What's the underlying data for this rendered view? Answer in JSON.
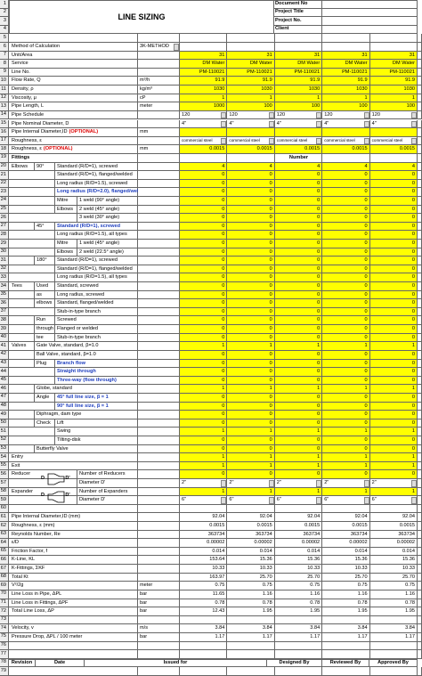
{
  "header": {
    "title": "LINE SIZING",
    "fields": [
      "Document No",
      "Project Title",
      "Project No.",
      "Client"
    ]
  },
  "rows": [
    {
      "n": "1"
    },
    {
      "n": "2"
    },
    {
      "n": "3"
    },
    {
      "n": "4"
    },
    {
      "n": "5"
    },
    {
      "n": "6",
      "c": [
        "Method of Calculation"
      ],
      "u": "3K-METHOD",
      "uk": "select"
    },
    {
      "n": "7",
      "c": [
        "Unit/Area"
      ],
      "v": [
        "31",
        "31",
        "31",
        "31",
        "31"
      ]
    },
    {
      "n": "8",
      "c": [
        "Service"
      ],
      "v": [
        "DM Water",
        "DM Water",
        "DM Water",
        "DM Water",
        "DM Water"
      ]
    },
    {
      "n": "9",
      "c": [
        "Line No."
      ],
      "v": [
        "PM-110021",
        "PM-110021",
        "PM-110021",
        "PM-110021",
        "PM-110021"
      ]
    },
    {
      "n": "10",
      "c": [
        "Flow Rate, Q"
      ],
      "u": "m³/h",
      "v": [
        "91.9",
        "91.9",
        "91.9",
        "91.9",
        "91.9"
      ]
    },
    {
      "n": "11",
      "c": [
        "Density, ρ"
      ],
      "u": "kg/m³",
      "v": [
        "1030",
        "1030",
        "1030",
        "1030",
        "1030"
      ]
    },
    {
      "n": "12",
      "c": [
        "Viscosity, μ"
      ],
      "u": "cP",
      "v": [
        "1",
        "1",
        "1",
        "1",
        "1"
      ]
    },
    {
      "n": "13",
      "c": [
        "Pipe Length, L"
      ],
      "u": "meter",
      "v": [
        "1000",
        "100",
        "100",
        "100",
        "100"
      ]
    },
    {
      "n": "14",
      "c": [
        "Pipe Schedule"
      ],
      "v": [
        "120",
        "120",
        "120",
        "120",
        "120"
      ],
      "kind": "select"
    },
    {
      "n": "15",
      "c": [
        "Pipe Nominal Diameter, D"
      ],
      "v": [
        "4\"",
        "4\"",
        "4\"",
        "4\"",
        "4\""
      ],
      "kind": "select"
    },
    {
      "n": "16",
      "c": [
        "Pipe Internal Diameter,ID"
      ],
      "note": "(OPTIONAL)",
      "u": "mm"
    },
    {
      "n": "17",
      "c": [
        "Roughness, ε"
      ],
      "v": [
        "commercial steel",
        "commercial steel",
        "commercial steel",
        "commercial steel",
        "commercial steel"
      ],
      "kind": "select"
    },
    {
      "n": "18",
      "c": [
        "Roughness, ε"
      ],
      "note": "(OPTIONAL)",
      "u": "mm",
      "v": [
        "0.0015",
        "0.0015",
        "0.0015",
        "0.0015",
        "0.0015"
      ]
    },
    {
      "n": "19",
      "c": [
        "Fittings"
      ],
      "h": "Number"
    },
    {
      "n": "20",
      "c": [
        "Elbows",
        "90°",
        "Standard (R/D=1), screwed"
      ],
      "v": [
        "4",
        "4",
        "4",
        "4",
        "4"
      ]
    },
    {
      "n": "21",
      "c": [
        null,
        null,
        "Standard (R/D=1), flanged/welded"
      ],
      "v": [
        "0",
        "0",
        "0",
        "0",
        "0"
      ]
    },
    {
      "n": "22",
      "c": [
        null,
        null,
        "Long radius (R/D=1.5), screwed"
      ],
      "v": [
        "0",
        "0",
        "0",
        "0",
        "0"
      ]
    },
    {
      "n": "23",
      "c": [
        null,
        null,
        "Long radius (R/D=2.0), flanged/welded"
      ],
      "s": "blue",
      "v": [
        "0",
        "0",
        "0",
        "0",
        "0"
      ]
    },
    {
      "n": "24",
      "c": [
        null,
        null,
        "Mitre",
        "1 weld (90° angle)"
      ],
      "v": [
        "0",
        "0",
        "0",
        "0",
        "0"
      ]
    },
    {
      "n": "25",
      "c": [
        null,
        null,
        "Elbows",
        "2 weld (45° angle)"
      ],
      "v": [
        "0",
        "0",
        "0",
        "0",
        "0"
      ]
    },
    {
      "n": "26",
      "c": [
        null,
        null,
        null,
        "3 weld (30° angle)"
      ],
      "v": [
        "0",
        "0",
        "0",
        "0",
        "0"
      ]
    },
    {
      "n": "27",
      "c": [
        null,
        "45°",
        "Standard (R/D=1), screwed"
      ],
      "s": "blue",
      "v": [
        "0",
        "0",
        "0",
        "0",
        "0"
      ]
    },
    {
      "n": "28",
      "c": [
        null,
        null,
        "Long radius (R/D=1.5), all types"
      ],
      "v": [
        "0",
        "0",
        "0",
        "0",
        "0"
      ]
    },
    {
      "n": "29",
      "c": [
        null,
        null,
        "Mitre",
        "1 weld (45° angle)"
      ],
      "v": [
        "0",
        "0",
        "0",
        "0",
        "0"
      ]
    },
    {
      "n": "30",
      "c": [
        null,
        null,
        "Elbows",
        "2 weld (22.5° angle)"
      ],
      "v": [
        "0",
        "0",
        "0",
        "0",
        "0"
      ]
    },
    {
      "n": "31",
      "c": [
        null,
        "180°",
        "Standard (R/D=1), screwed"
      ],
      "v": [
        "0",
        "0",
        "0",
        "0",
        "0"
      ]
    },
    {
      "n": "32",
      "c": [
        null,
        null,
        "Standard (R/D=1), flanged/welded"
      ],
      "v": [
        "0",
        "0",
        "0",
        "0",
        "0"
      ]
    },
    {
      "n": "33",
      "c": [
        null,
        null,
        "Long radius (R/D=1.5), all types"
      ],
      "v": [
        "0",
        "0",
        "0",
        "0",
        "0"
      ]
    },
    {
      "n": "34",
      "c": [
        "Tees",
        "Used",
        "Standard, screwed"
      ],
      "v": [
        "0",
        "0",
        "0",
        "0",
        "0"
      ]
    },
    {
      "n": "35",
      "c": [
        null,
        "as",
        "Long radius, screwed"
      ],
      "v": [
        "0",
        "0",
        "0",
        "0",
        "0"
      ]
    },
    {
      "n": "36",
      "c": [
        null,
        "elbows",
        "Standard, flanged/welded"
      ],
      "v": [
        "0",
        "0",
        "0",
        "0",
        "0"
      ]
    },
    {
      "n": "37",
      "c": [
        null,
        null,
        "Stub-in-type branch"
      ],
      "v": [
        "0",
        "0",
        "0",
        "0",
        "0"
      ]
    },
    {
      "n": "38",
      "c": [
        null,
        "Run",
        "Screwed"
      ],
      "v": [
        "0",
        "0",
        "0",
        "0",
        "0"
      ]
    },
    {
      "n": "39",
      "c": [
        null,
        "through",
        "Flanged or welded"
      ],
      "v": [
        "0",
        "0",
        "0",
        "0",
        "0"
      ]
    },
    {
      "n": "40",
      "c": [
        null,
        "tee",
        "Stub-in-type branch"
      ],
      "v": [
        "0",
        "0",
        "0",
        "0",
        "0"
      ]
    },
    {
      "n": "41",
      "c": [
        "Valves",
        "Gate Valve, standard, β=1.0"
      ],
      "v": [
        "1",
        "1",
        "1",
        "1",
        "1"
      ]
    },
    {
      "n": "42",
      "c": [
        null,
        "Ball Valve, standard, β=1.0"
      ],
      "v": [
        "0",
        "0",
        "0",
        "0",
        "0"
      ]
    },
    {
      "n": "43",
      "c": [
        null,
        "Plug",
        "Branch flow"
      ],
      "s": "blue",
      "v": [
        "0",
        "0",
        "0",
        "0",
        "0"
      ]
    },
    {
      "n": "44",
      "c": [
        null,
        null,
        "Straight through"
      ],
      "s": "blue",
      "v": [
        "0",
        "0",
        "0",
        "0",
        "0"
      ]
    },
    {
      "n": "45",
      "c": [
        null,
        null,
        "Three-way (flow through)"
      ],
      "s": "blue",
      "v": [
        "0",
        "0",
        "0",
        "0",
        "0"
      ]
    },
    {
      "n": "46",
      "c": [
        null,
        "Globe, standard"
      ],
      "v": [
        "1",
        "1",
        "1",
        "1",
        "1"
      ]
    },
    {
      "n": "47",
      "c": [
        null,
        "Angle",
        "45°  full line size, β = 1"
      ],
      "s": "blue",
      "v": [
        "0",
        "0",
        "0",
        "0",
        "0"
      ]
    },
    {
      "n": "48",
      "c": [
        null,
        null,
        "90°  full line size, β = 1"
      ],
      "s": "blue",
      "v": [
        "0",
        "0",
        "0",
        "0",
        "0"
      ]
    },
    {
      "n": "49",
      "c": [
        null,
        "Diphragm, dam type"
      ],
      "v": [
        "0",
        "0",
        "0",
        "0",
        "0"
      ]
    },
    {
      "n": "50",
      "c": [
        null,
        "Check",
        "Lift"
      ],
      "v": [
        "0",
        "0",
        "0",
        "0",
        "0"
      ]
    },
    {
      "n": "51",
      "c": [
        null,
        null,
        "Swing"
      ],
      "v": [
        "1",
        "1",
        "1",
        "1",
        "1"
      ]
    },
    {
      "n": "52",
      "c": [
        null,
        null,
        "Tilting-disk"
      ],
      "v": [
        "0",
        "0",
        "0",
        "0",
        "0"
      ]
    },
    {
      "n": "53",
      "c": [
        null,
        "Butterfly Valve"
      ],
      "v": [
        "0",
        "0",
        "0",
        "0",
        "0"
      ]
    },
    {
      "n": "54",
      "c": [
        "Entry"
      ],
      "v": [
        "1",
        "1",
        "1",
        "1",
        "1"
      ]
    },
    {
      "n": "55",
      "c": [
        "Exit"
      ],
      "v": [
        "1",
        "1",
        "1",
        "1",
        "1"
      ]
    },
    {
      "n": "56",
      "c": [
        "Reducer",
        null,
        null,
        "Number of Reducers"
      ],
      "d": [
        "D",
        "D'"
      ],
      "v": [
        "0",
        "0",
        "0",
        "0",
        "0"
      ]
    },
    {
      "n": "57",
      "c": [
        null,
        null,
        null,
        "Diameter D'"
      ],
      "v": [
        "2\"",
        "2\"",
        "2\"",
        "2\"",
        "2\""
      ],
      "kind": "select"
    },
    {
      "n": "58",
      "c": [
        "Expander",
        null,
        null,
        "Number of Expanders"
      ],
      "d": [
        "D",
        "D'"
      ],
      "v": [
        "1",
        "1",
        "1",
        "1",
        "1"
      ]
    },
    {
      "n": "59",
      "c": [
        null,
        null,
        null,
        "Diameter D'"
      ],
      "v": [
        "6\"",
        "6\"",
        "6\"",
        "6\"",
        "6\""
      ],
      "kind": "select"
    },
    {
      "n": "60"
    },
    {
      "n": "61",
      "c": [
        "Pipe Internal Diameter,ID (mm)"
      ],
      "v": [
        "92.04",
        "92.04",
        "92.04",
        "92.04",
        "92.04"
      ]
    },
    {
      "n": "62",
      "c": [
        "Roughness, ε (mm)"
      ],
      "v": [
        "0.0015",
        "0.0015",
        "0.0015",
        "0.0015",
        "0.0015"
      ]
    },
    {
      "n": "63",
      "c": [
        "Reynolds Number, Re"
      ],
      "v": [
        "363734",
        "363734",
        "363734",
        "363734",
        "363734"
      ]
    },
    {
      "n": "64",
      "c": [
        "ε/D"
      ],
      "v": [
        "0.00002",
        "0.00002",
        "0.00002",
        "0.00002",
        "0.00002"
      ]
    },
    {
      "n": "65",
      "c": [
        "Friction Factor, f"
      ],
      "v": [
        "0.014",
        "0.014",
        "0.014",
        "0.014",
        "0.014"
      ]
    },
    {
      "n": "66",
      "c": [
        "K-Line, KL"
      ],
      "v": [
        "153.64",
        "15.36",
        "15.36",
        "15.36",
        "15.36"
      ]
    },
    {
      "n": "67",
      "c": [
        "K-Fittings, ΣKF"
      ],
      "v": [
        "10.33",
        "10.33",
        "10.33",
        "10.33",
        "10.33"
      ]
    },
    {
      "n": "68",
      "c": [
        "Total Kt"
      ],
      "v": [
        "163.97",
        "25.70",
        "25.70",
        "25.70",
        "25.70"
      ]
    },
    {
      "n": "69",
      "c": [
        "V²/2g"
      ],
      "u": "meter",
      "v": [
        "0.75",
        "0.75",
        "0.75",
        "0.75",
        "0.75"
      ]
    },
    {
      "n": "70",
      "c": [
        "Line Loss in Pipe, ΔPL"
      ],
      "u": "bar",
      "v": [
        "11.65",
        "1.16",
        "1.16",
        "1.16",
        "1.16"
      ]
    },
    {
      "n": "71",
      "c": [
        "Line Loss in Fittings, ΔPF"
      ],
      "u": "bar",
      "v": [
        "0.78",
        "0.78",
        "0.78",
        "0.78",
        "0.78"
      ]
    },
    {
      "n": "72",
      "c": [
        "Total Line Loss, ΔP"
      ],
      "u": "bar",
      "v": [
        "12.43",
        "1.95",
        "1.95",
        "1.95",
        "1.95"
      ]
    },
    {
      "n": "73"
    },
    {
      "n": "74",
      "c": [
        "Velocity, v"
      ],
      "u": "m/s",
      "v": [
        "3.84",
        "3.84",
        "3.84",
        "3.84",
        "3.84"
      ]
    },
    {
      "n": "75",
      "c": [
        "Pressure Drop, ΔPL / 100 meter"
      ],
      "u": "bar",
      "v": [
        "1.17",
        "1.17",
        "1.17",
        "1.17",
        "1.17"
      ]
    },
    {
      "n": "76"
    },
    {
      "n": "77"
    },
    {
      "n": "78",
      "f": [
        "Revision",
        "Date",
        "Issued for",
        "Designed By",
        "Reviewed By",
        "Approved By"
      ]
    },
    {
      "n": "79"
    }
  ]
}
